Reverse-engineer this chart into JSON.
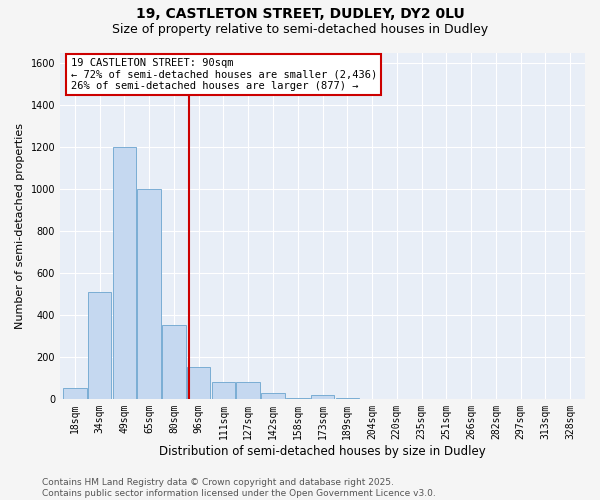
{
  "title_line1": "19, CASTLETON STREET, DUDLEY, DY2 0LU",
  "title_line2": "Size of property relative to semi-detached houses in Dudley",
  "xlabel": "Distribution of semi-detached houses by size in Dudley",
  "ylabel": "Number of semi-detached properties",
  "categories": [
    "18sqm",
    "34sqm",
    "49sqm",
    "65sqm",
    "80sqm",
    "96sqm",
    "111sqm",
    "127sqm",
    "142sqm",
    "158sqm",
    "173sqm",
    "189sqm",
    "204sqm",
    "220sqm",
    "235sqm",
    "251sqm",
    "266sqm",
    "282sqm",
    "297sqm",
    "313sqm",
    "328sqm"
  ],
  "bar_heights": [
    50,
    510,
    1200,
    1000,
    350,
    150,
    80,
    80,
    30,
    5,
    20,
    5,
    0,
    0,
    0,
    0,
    0,
    0,
    0,
    0,
    0
  ],
  "bar_color": "#c5d8f0",
  "bar_edge_color": "#7aadd4",
  "annotation_box_text": "19 CASTLETON STREET: 90sqm\n← 72% of semi-detached houses are smaller (2,436)\n26% of semi-detached houses are larger (877) →",
  "annotation_box_color": "#ffffff",
  "annotation_box_edge_color": "#cc0000",
  "vline_color": "#cc0000",
  "ylim": [
    0,
    1650
  ],
  "yticks": [
    0,
    200,
    400,
    600,
    800,
    1000,
    1200,
    1400,
    1600
  ],
  "background_color": "#e8eef7",
  "grid_color": "#ffffff",
  "footer_line1": "Contains HM Land Registry data © Crown copyright and database right 2025.",
  "footer_line2": "Contains public sector information licensed under the Open Government Licence v3.0.",
  "title_fontsize": 10,
  "subtitle_fontsize": 9,
  "xlabel_fontsize": 8.5,
  "ylabel_fontsize": 8,
  "tick_fontsize": 7,
  "footer_fontsize": 6.5,
  "annotation_fontsize": 7.5
}
